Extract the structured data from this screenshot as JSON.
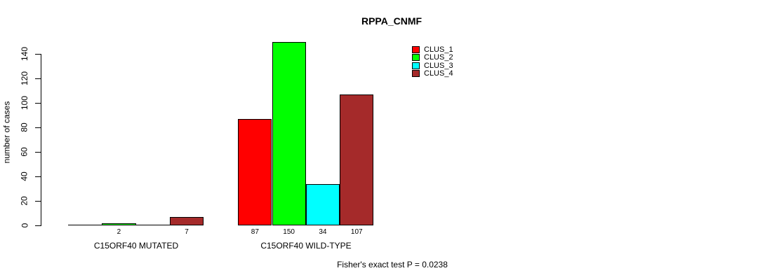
{
  "chart_data": {
    "type": "bar",
    "title": "RPPA_CNMF",
    "ylabel": "number of cases",
    "xlabel": "",
    "ylim": [
      0,
      140
    ],
    "yticks": [
      0,
      20,
      40,
      60,
      80,
      100,
      120,
      140
    ],
    "categories": [
      "C15ORF40 MUTATED",
      "C15ORF40 WILD-TYPE"
    ],
    "series": [
      {
        "name": "CLUS_1",
        "color": "#FF0000",
        "values": [
          0,
          87
        ]
      },
      {
        "name": "CLUS_2",
        "color": "#00FF00",
        "values": [
          2,
          150
        ]
      },
      {
        "name": "CLUS_3",
        "color": "#00FFFF",
        "values": [
          0,
          34
        ]
      },
      {
        "name": "CLUS_4",
        "color": "#A52A2A",
        "values": [
          7,
          107
        ]
      }
    ],
    "bar_value_labels": [
      "2",
      "7",
      "87",
      "150",
      "34",
      "107"
    ],
    "annotation": "Fisher's exact test P = 0.0238",
    "legend_position": "top-right",
    "grid": false,
    "background_color": "#ffffff",
    "axis_color": "#000000"
  }
}
